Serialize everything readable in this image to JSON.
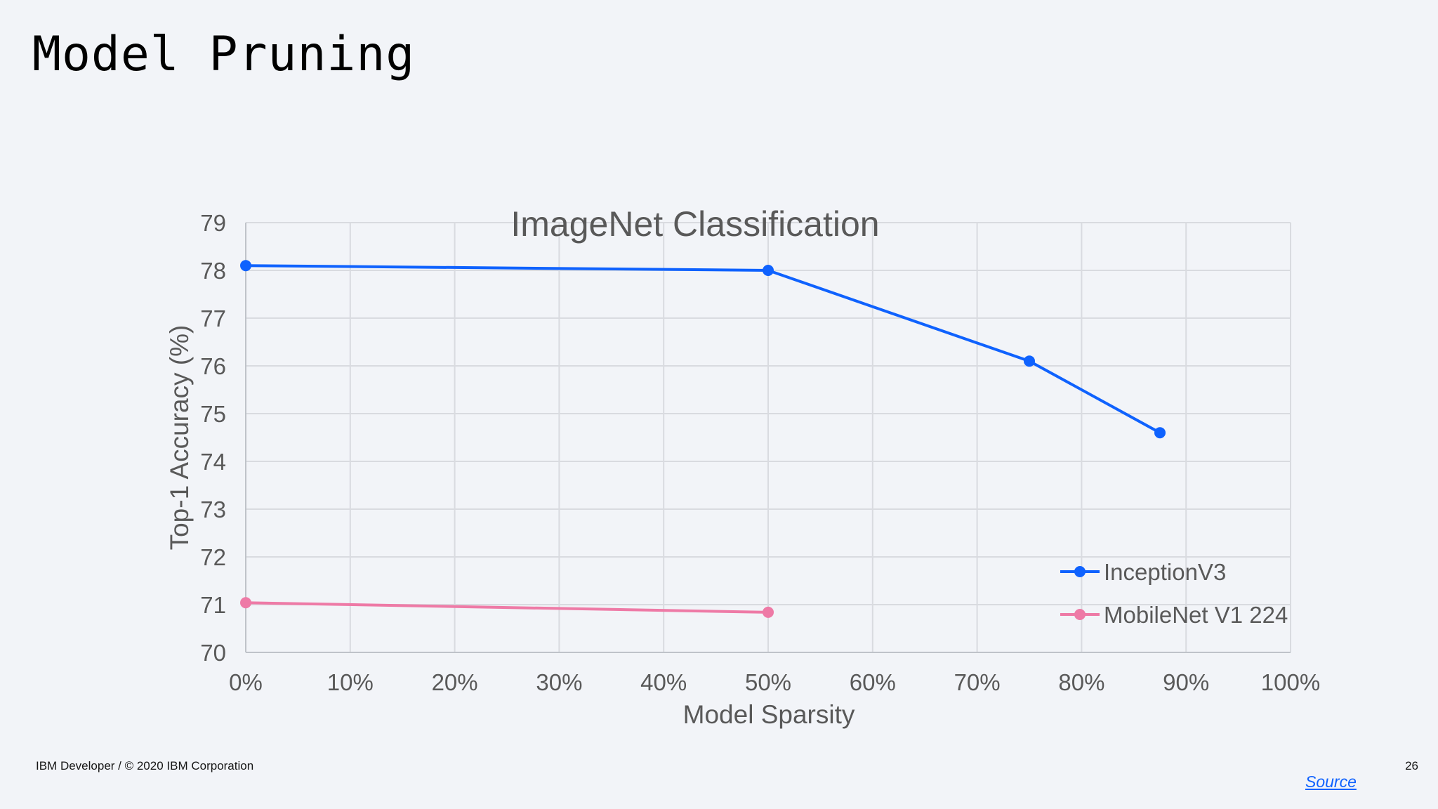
{
  "slide": {
    "title": "Model Pruning",
    "footer": "IBM Developer / © 2020 IBM Corporation",
    "page_number": "26",
    "source_link": "Source"
  },
  "colors": {
    "inception": "#0f62fe",
    "mobilenet": "#ee7aa6",
    "grid": "#d9dbe0",
    "text": "#595959"
  },
  "chart_data": {
    "type": "line",
    "title": "ImageNet Classification",
    "xlabel": "Model Sparsity",
    "ylabel": "Top-1 Accuracy (%)",
    "xlim": [
      0,
      100
    ],
    "ylim": [
      70,
      79
    ],
    "x_ticks": [
      "0%",
      "10%",
      "20%",
      "30%",
      "40%",
      "50%",
      "60%",
      "70%",
      "80%",
      "90%",
      "100%"
    ],
    "y_ticks": [
      "70",
      "71",
      "72",
      "73",
      "74",
      "75",
      "76",
      "77",
      "78",
      "79"
    ],
    "grid": true,
    "legend_position": "bottom-right",
    "series": [
      {
        "name": "InceptionV3",
        "color": "#0f62fe",
        "x": [
          0,
          50,
          75,
          87.5
        ],
        "y": [
          78.1,
          78.0,
          76.1,
          74.6
        ]
      },
      {
        "name": "MobileNet V1 224",
        "color": "#ee7aa6",
        "x": [
          0,
          50
        ],
        "y": [
          71.04,
          70.84
        ]
      }
    ]
  }
}
